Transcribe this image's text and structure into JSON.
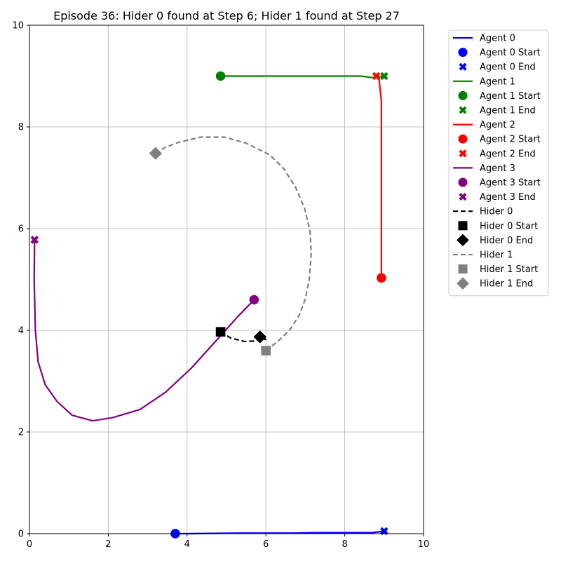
{
  "chart_data": {
    "type": "line",
    "title": "Episode 36: Hider 0 found at Step 6; Hider 1 found at Step 27",
    "xlim": [
      0,
      10
    ],
    "ylim": [
      0,
      10
    ],
    "xticks": [
      0,
      2,
      4,
      6,
      8,
      10
    ],
    "yticks": [
      0,
      2,
      4,
      6,
      8,
      10
    ],
    "grid": true,
    "legend_position": "outside-right",
    "series": [
      {
        "name": "Agent 0",
        "color": "#0000ff",
        "dash": "solid",
        "start_marker": "circle",
        "end_marker": "x",
        "start_label": "Agent 0 Start",
        "end_label": "Agent 0 End",
        "points": [
          [
            3.7,
            0.0
          ],
          [
            4.0,
            0.0
          ],
          [
            5.3,
            0.01
          ],
          [
            6.7,
            0.01
          ],
          [
            7.2,
            0.02
          ],
          [
            8.7,
            0.02
          ],
          [
            9.0,
            0.05
          ]
        ]
      },
      {
        "name": "Agent 1",
        "color": "#008000",
        "dash": "solid",
        "start_marker": "circle",
        "end_marker": "x",
        "start_label": "Agent 1 Start",
        "end_label": "Agent 1 End",
        "points": [
          [
            4.85,
            9.0
          ],
          [
            6.0,
            9.0
          ],
          [
            7.5,
            9.0
          ],
          [
            8.4,
            9.0
          ],
          [
            8.7,
            8.97
          ],
          [
            9.0,
            9.0
          ]
        ]
      },
      {
        "name": "Agent 2",
        "color": "#ff0000",
        "dash": "solid",
        "start_marker": "circle",
        "end_marker": "x",
        "start_label": "Agent 2 Start",
        "end_label": "Agent 2 End",
        "points": [
          [
            8.93,
            5.03
          ],
          [
            8.93,
            6.5
          ],
          [
            8.93,
            8.5
          ],
          [
            8.87,
            8.95
          ],
          [
            8.8,
            9.0
          ]
        ]
      },
      {
        "name": "Agent 3",
        "color": "#800080",
        "dash": "solid",
        "start_marker": "circle",
        "end_marker": "x",
        "start_label": "Agent 3 Start",
        "end_label": "Agent 3 End",
        "points": [
          [
            5.7,
            4.6
          ],
          [
            5.3,
            4.28
          ],
          [
            4.8,
            3.85
          ],
          [
            4.1,
            3.25
          ],
          [
            3.45,
            2.78
          ],
          [
            2.8,
            2.44
          ],
          [
            2.1,
            2.28
          ],
          [
            1.6,
            2.22
          ],
          [
            1.08,
            2.33
          ],
          [
            0.7,
            2.6
          ],
          [
            0.4,
            2.93
          ],
          [
            0.22,
            3.38
          ],
          [
            0.15,
            4.0
          ],
          [
            0.12,
            5.0
          ],
          [
            0.13,
            5.78
          ]
        ]
      },
      {
        "name": "Hider 0",
        "color": "#000000",
        "dash": "dashed",
        "start_marker": "square",
        "end_marker": "diamond",
        "start_label": "Hider 0 Start",
        "end_label": "Hider 0 End",
        "points": [
          [
            4.85,
            3.97
          ],
          [
            5.1,
            3.85
          ],
          [
            5.45,
            3.78
          ],
          [
            5.75,
            3.79
          ],
          [
            5.85,
            3.85
          ],
          [
            6.0,
            3.82
          ],
          [
            5.85,
            3.87
          ]
        ]
      },
      {
        "name": "Hider 1",
        "color": "#808080",
        "dash": "dashed",
        "start_marker": "square",
        "end_marker": "diamond",
        "start_label": "Hider 1 Start",
        "end_label": "Hider 1 End",
        "points": [
          [
            6.0,
            3.6
          ],
          [
            6.3,
            3.78
          ],
          [
            6.6,
            4.0
          ],
          [
            6.85,
            4.3
          ],
          [
            7.0,
            4.62
          ],
          [
            7.1,
            5.0
          ],
          [
            7.15,
            5.5
          ],
          [
            7.12,
            5.95
          ],
          [
            6.98,
            6.4
          ],
          [
            6.75,
            6.82
          ],
          [
            6.45,
            7.18
          ],
          [
            6.1,
            7.45
          ],
          [
            5.5,
            7.68
          ],
          [
            4.95,
            7.8
          ],
          [
            4.35,
            7.8
          ],
          [
            3.8,
            7.7
          ],
          [
            3.45,
            7.6
          ],
          [
            3.2,
            7.48
          ]
        ]
      }
    ]
  }
}
